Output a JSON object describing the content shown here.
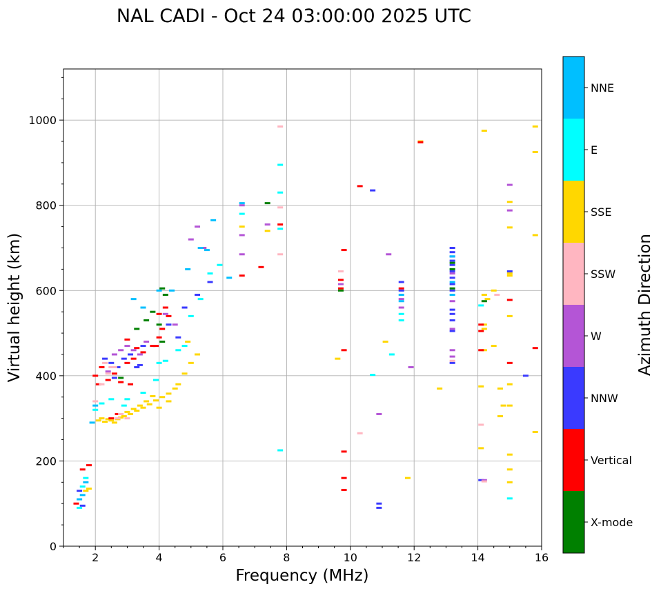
{
  "chart_data": {
    "type": "scatter",
    "title": "NAL CADI - Oct 24 03:00:00 2025 UTC",
    "xlabel": "Frequency (MHz)",
    "ylabel": "Virtual height (km)",
    "xlim": [
      1,
      16
    ],
    "ylim": [
      0,
      1120
    ],
    "xticks": [
      2,
      4,
      6,
      8,
      10,
      12,
      14,
      16
    ],
    "xtick_labels": [
      "2",
      "4",
      "6",
      "8",
      "10",
      "12",
      "14",
      "16"
    ],
    "yticks": [
      0,
      200,
      400,
      600,
      800,
      1000
    ],
    "ytick_labels": [
      "0",
      "200",
      "400",
      "600",
      "800",
      "1000"
    ],
    "grid": true,
    "colorbar": {
      "label": "Azimuth Direction",
      "categories": [
        {
          "name": "X-mode",
          "color": "#008000"
        },
        {
          "name": "Vertical",
          "color": "#ff0000"
        },
        {
          "name": "NNW",
          "color": "#3a3aff"
        },
        {
          "name": "W",
          "color": "#b455d6"
        },
        {
          "name": "SSW",
          "color": "#ffb6c1"
        },
        {
          "name": "SSE",
          "color": "#ffd700"
        },
        {
          "name": "E",
          "color": "#00ffff"
        },
        {
          "name": "NNE",
          "color": "#00bfff"
        }
      ]
    },
    "series": [
      {
        "name": "SSE",
        "points": [
          [
            2.1,
            295
          ],
          [
            2.3,
            292
          ],
          [
            2.5,
            295
          ],
          [
            2.7,
            298
          ],
          [
            2.9,
            305
          ],
          [
            3.1,
            310
          ],
          [
            3.3,
            318
          ],
          [
            3.5,
            325
          ],
          [
            3.7,
            333
          ],
          [
            3.9,
            342
          ],
          [
            4.1,
            350
          ],
          [
            4.3,
            358
          ],
          [
            4.6,
            380
          ],
          [
            4.8,
            405
          ],
          [
            5.0,
            430
          ],
          [
            5.2,
            450
          ],
          [
            2.2,
            300
          ],
          [
            2.4,
            298
          ],
          [
            2.6,
            290
          ],
          [
            2.8,
            302
          ],
          [
            3.0,
            315
          ],
          [
            3.2,
            322
          ],
          [
            3.4,
            330
          ],
          [
            3.6,
            340
          ],
          [
            3.8,
            352
          ],
          [
            4.0,
            325
          ],
          [
            4.3,
            340
          ],
          [
            4.5,
            370
          ],
          [
            4.9,
            480
          ],
          [
            1.8,
            135
          ],
          [
            1.7,
            130
          ],
          [
            6.6,
            750
          ],
          [
            7.4,
            740
          ],
          [
            9.6,
            440
          ],
          [
            11.1,
            480
          ],
          [
            12.2,
            950
          ],
          [
            12.8,
            370
          ],
          [
            14.1,
            375
          ],
          [
            14.2,
            520
          ],
          [
            14.2,
            510
          ],
          [
            14.3,
            580
          ],
          [
            14.5,
            600
          ],
          [
            14.7,
            370
          ],
          [
            14.8,
            330
          ],
          [
            14.7,
            305
          ],
          [
            15.0,
            540
          ],
          [
            15.0,
            640
          ],
          [
            15.0,
            635
          ],
          [
            15.0,
            380
          ],
          [
            15.0,
            330
          ],
          [
            15.0,
            215
          ],
          [
            15.0,
            180
          ],
          [
            15.0,
            150
          ],
          [
            15.0,
            808
          ],
          [
            15.0,
            748
          ],
          [
            15.8,
            985
          ],
          [
            15.8,
            925
          ],
          [
            15.8,
            730
          ],
          [
            15.8,
            268
          ],
          [
            14.2,
            590
          ],
          [
            14.2,
            460
          ],
          [
            14.1,
            230
          ],
          [
            11.8,
            160
          ],
          [
            14.2,
            975
          ],
          [
            14.5,
            470
          ]
        ]
      },
      {
        "name": "Vertical",
        "points": [
          [
            2.0,
            400
          ],
          [
            2.2,
            420
          ],
          [
            2.4,
            390
          ],
          [
            2.6,
            405
          ],
          [
            2.8,
            385
          ],
          [
            3.0,
            430
          ],
          [
            3.2,
            440
          ],
          [
            3.5,
            455
          ],
          [
            3.8,
            470
          ],
          [
            4.0,
            490
          ],
          [
            4.2,
            560
          ],
          [
            1.4,
            100
          ],
          [
            1.6,
            180
          ],
          [
            1.8,
            190
          ],
          [
            4.3,
            540
          ],
          [
            4.0,
            545
          ],
          [
            3.0,
            485
          ],
          [
            2.7,
            310
          ],
          [
            2.5,
            300
          ],
          [
            7.8,
            755
          ],
          [
            9.7,
            605
          ],
          [
            9.7,
            625
          ],
          [
            9.8,
            695
          ],
          [
            9.8,
            460
          ],
          [
            9.8,
            222
          ],
          [
            9.8,
            160
          ],
          [
            9.8,
            132
          ],
          [
            10.3,
            845
          ],
          [
            11.6,
            605
          ],
          [
            12.2,
            948
          ],
          [
            14.1,
            460
          ],
          [
            14.1,
            505
          ],
          [
            14.1,
            520
          ],
          [
            15.0,
            430
          ],
          [
            15.0,
            578
          ],
          [
            15.8,
            465
          ],
          [
            6.6,
            635
          ],
          [
            7.2,
            655
          ],
          [
            3.3,
            465
          ],
          [
            2.1,
            380
          ],
          [
            3.1,
            380
          ],
          [
            3.9,
            470
          ],
          [
            4.1,
            510
          ]
        ]
      },
      {
        "name": "NNW",
        "points": [
          [
            2.3,
            440
          ],
          [
            2.5,
            430
          ],
          [
            2.7,
            420
          ],
          [
            2.9,
            440
          ],
          [
            3.1,
            450
          ],
          [
            3.3,
            420
          ],
          [
            3.5,
            470
          ],
          [
            4.3,
            520
          ],
          [
            4.8,
            560
          ],
          [
            5.2,
            590
          ],
          [
            5.6,
            620
          ],
          [
            1.5,
            130
          ],
          [
            1.6,
            95
          ],
          [
            10.7,
            835
          ],
          [
            10.9,
            100
          ],
          [
            10.9,
            90
          ],
          [
            13.2,
            700
          ],
          [
            13.2,
            690
          ],
          [
            13.2,
            680
          ],
          [
            13.2,
            670
          ],
          [
            13.2,
            660
          ],
          [
            13.2,
            645
          ],
          [
            13.2,
            630
          ],
          [
            13.2,
            615
          ],
          [
            13.2,
            600
          ],
          [
            13.2,
            555
          ],
          [
            13.2,
            545
          ],
          [
            13.2,
            530
          ],
          [
            13.2,
            505
          ],
          [
            13.2,
            430
          ],
          [
            15.0,
            645
          ],
          [
            15.5,
            400
          ],
          [
            11.6,
            600
          ],
          [
            11.6,
            620
          ],
          [
            14.1,
            155
          ],
          [
            2.6,
            395
          ],
          [
            3.4,
            425
          ],
          [
            4.6,
            490
          ]
        ]
      },
      {
        "name": "W",
        "points": [
          [
            2.6,
            450
          ],
          [
            2.8,
            460
          ],
          [
            3.0,
            470
          ],
          [
            3.2,
            460
          ],
          [
            3.4,
            450
          ],
          [
            2.4,
            410
          ],
          [
            4.2,
            545
          ],
          [
            4.5,
            520
          ],
          [
            5.0,
            720
          ],
          [
            5.2,
            750
          ],
          [
            6.6,
            685
          ],
          [
            6.6,
            730
          ],
          [
            6.6,
            800
          ],
          [
            7.4,
            755
          ],
          [
            9.7,
            615
          ],
          [
            11.2,
            685
          ],
          [
            11.6,
            560
          ],
          [
            11.6,
            580
          ],
          [
            11.9,
            420
          ],
          [
            13.2,
            640
          ],
          [
            13.2,
            575
          ],
          [
            13.2,
            510
          ],
          [
            13.2,
            460
          ],
          [
            13.2,
            445
          ],
          [
            15.0,
            848
          ],
          [
            15.0,
            788
          ],
          [
            10.9,
            310
          ],
          [
            14.2,
            155
          ],
          [
            3.6,
            480
          ],
          [
            5.4,
            700
          ]
        ]
      },
      {
        "name": "SSW",
        "points": [
          [
            2.0,
            340
          ],
          [
            2.2,
            380
          ],
          [
            2.4,
            405
          ],
          [
            2.6,
            420
          ],
          [
            2.8,
            310
          ],
          [
            3.0,
            300
          ],
          [
            2.5,
            420
          ],
          [
            2.7,
            300
          ],
          [
            7.8,
            985
          ],
          [
            7.8,
            795
          ],
          [
            7.8,
            685
          ],
          [
            9.7,
            645
          ],
          [
            10.3,
            265
          ],
          [
            14.1,
            285
          ],
          [
            14.6,
            590
          ],
          [
            13.2,
            435
          ],
          [
            14.2,
            152
          ],
          [
            2.3,
            430
          ]
        ]
      },
      {
        "name": "E",
        "points": [
          [
            1.5,
            90
          ],
          [
            1.6,
            140
          ],
          [
            1.7,
            160
          ],
          [
            2.0,
            320
          ],
          [
            2.2,
            335
          ],
          [
            2.5,
            345
          ],
          [
            3.0,
            345
          ],
          [
            3.5,
            360
          ],
          [
            4.0,
            430
          ],
          [
            4.2,
            435
          ],
          [
            4.6,
            460
          ],
          [
            4.8,
            470
          ],
          [
            5.0,
            540
          ],
          [
            5.3,
            580
          ],
          [
            5.6,
            640
          ],
          [
            5.9,
            660
          ],
          [
            6.6,
            780
          ],
          [
            7.8,
            895
          ],
          [
            7.8,
            830
          ],
          [
            7.8,
            745
          ],
          [
            7.8,
            225
          ],
          [
            10.7,
            402
          ],
          [
            11.3,
            450
          ],
          [
            11.6,
            530
          ],
          [
            11.6,
            545
          ],
          [
            14.1,
            565
          ],
          [
            15.0,
            112
          ],
          [
            2.9,
            330
          ],
          [
            3.9,
            390
          ]
        ]
      },
      {
        "name": "NNE",
        "points": [
          [
            1.5,
            110
          ],
          [
            1.6,
            120
          ],
          [
            1.7,
            150
          ],
          [
            1.9,
            290
          ],
          [
            2.0,
            330
          ],
          [
            3.2,
            580
          ],
          [
            3.5,
            560
          ],
          [
            4.0,
            600
          ],
          [
            4.4,
            600
          ],
          [
            5.3,
            700
          ],
          [
            5.7,
            765
          ],
          [
            5.5,
            695
          ],
          [
            6.2,
            630
          ],
          [
            6.6,
            805
          ],
          [
            11.6,
            575
          ],
          [
            11.6,
            590
          ],
          [
            13.2,
            680
          ],
          [
            13.2,
            650
          ],
          [
            13.2,
            620
          ],
          [
            13.2,
            590
          ],
          [
            4.9,
            650
          ]
        ]
      },
      {
        "name": "X-mode",
        "points": [
          [
            4.1,
            605
          ],
          [
            4.1,
            480
          ],
          [
            4.0,
            520
          ],
          [
            3.8,
            550
          ],
          [
            3.6,
            530
          ],
          [
            4.2,
            590
          ],
          [
            7.4,
            805
          ],
          [
            13.2,
            665
          ],
          [
            13.2,
            650
          ],
          [
            13.2,
            605
          ],
          [
            14.2,
            575
          ],
          [
            9.7,
            600
          ],
          [
            2.8,
            395
          ],
          [
            3.3,
            510
          ]
        ]
      }
    ]
  }
}
